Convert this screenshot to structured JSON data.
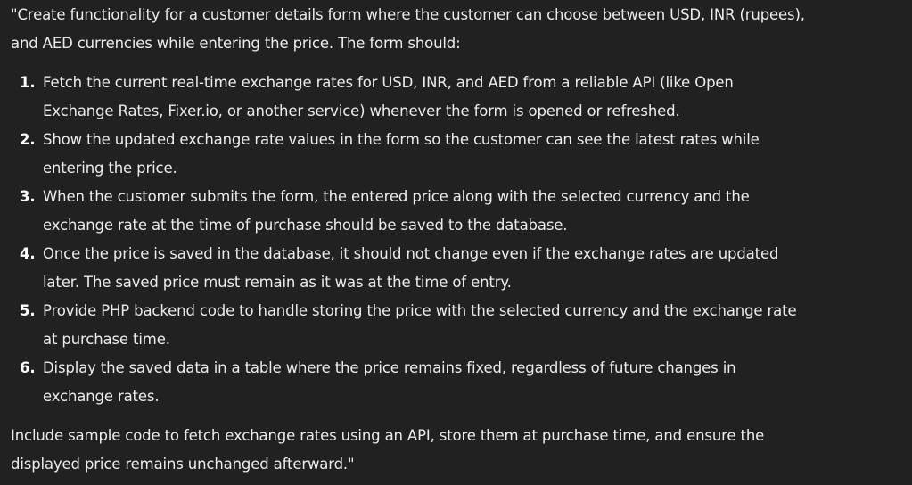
{
  "message": {
    "intro": "\"Create functionality for a customer details form where the customer can choose between USD, INR (rupees), and AED currencies while entering the price. The form should:",
    "steps": [
      {
        "num": "1.",
        "text": "Fetch the current real-time exchange rates for USD, INR, and AED from a reliable API (like Open Exchange Rates, Fixer.io, or another service) whenever the form is opened or refreshed."
      },
      {
        "num": "2.",
        "text": "Show the updated exchange rate values in the form so the customer can see the latest rates while entering the price."
      },
      {
        "num": "3.",
        "text": "When the customer submits the form, the entered price along with the selected currency and the exchange rate at the time of purchase should be saved to the database."
      },
      {
        "num": "4.",
        "text": "Once the price is saved in the database, it should not change even if the exchange rates are updated later. The saved price must remain as it was at the time of entry."
      },
      {
        "num": "5.",
        "text": "Provide PHP backend code to handle storing the price with the selected currency and the exchange rate at purchase time."
      },
      {
        "num": "6.",
        "text": "Display the saved data in a table where the price remains fixed, regardless of future changes in exchange rates."
      }
    ],
    "outro": "Include sample code to fetch exchange rates using an API, store them at purchase time, and ensure the displayed price remains unchanged afterward.\""
  }
}
